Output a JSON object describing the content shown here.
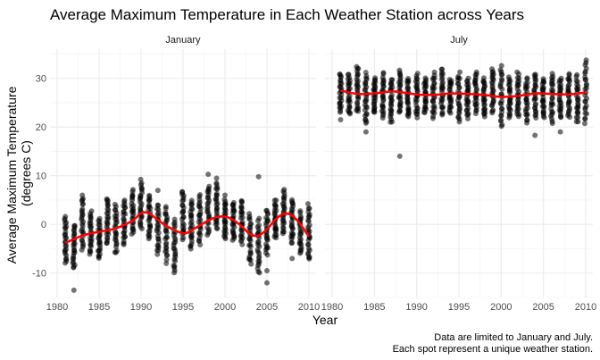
{
  "chart_data": {
    "type": "scatter",
    "title": "Average Maximum Temperature in Each Weather Station across Years",
    "xlabel": "Year",
    "ylabel_lines": [
      "Average Maximum Temperature",
      "(degrees C)"
    ],
    "caption_lines": [
      "Data are limited to January and July.",
      "Each spot represent a unique weather station."
    ],
    "xlim": [
      1980,
      2010
    ],
    "ylim": [
      -15,
      36
    ],
    "x_ticks": [
      1980,
      1985,
      1990,
      1995,
      2000,
      2005,
      2010
    ],
    "y_ticks": [
      -10,
      0,
      10,
      20,
      30
    ],
    "grid": true,
    "point_color": "#000000",
    "trend_color": "#ff0000",
    "panels": [
      {
        "name": "January",
        "ranges": [
          [
            1981,
            -8,
            1.5
          ],
          [
            1982,
            -9,
            0
          ],
          [
            1983,
            -5,
            5.5
          ],
          [
            1984,
            -6,
            2.5
          ],
          [
            1985,
            -7,
            1
          ],
          [
            1986,
            -4,
            5.5
          ],
          [
            1987,
            -6,
            4
          ],
          [
            1988,
            -4,
            5
          ],
          [
            1989,
            -2,
            7
          ],
          [
            1990,
            -1,
            9
          ],
          [
            1991,
            -3,
            6
          ],
          [
            1992,
            -6,
            4
          ],
          [
            1993,
            -7,
            3.5
          ],
          [
            1994,
            -10,
            1
          ],
          [
            1995,
            -3,
            7
          ],
          [
            1996,
            -5,
            5
          ],
          [
            1997,
            -4,
            6
          ],
          [
            1998,
            -2,
            8
          ],
          [
            1999,
            -1,
            8.5
          ],
          [
            2000,
            -3,
            5
          ],
          [
            2001,
            -3,
            4.5
          ],
          [
            2002,
            -4,
            5
          ],
          [
            2003,
            -8,
            2
          ],
          [
            2004,
            -10,
            1
          ],
          [
            2005,
            -6,
            3
          ],
          [
            2006,
            -3,
            5
          ],
          [
            2007,
            -2,
            7
          ],
          [
            2008,
            -4,
            5
          ],
          [
            2009,
            -6,
            2.5
          ],
          [
            2010,
            -7,
            4
          ]
        ],
        "outliers": [
          [
            1982,
            -13.5
          ],
          [
            1993,
            -8
          ],
          [
            1998,
            10.3
          ],
          [
            1999,
            9.5
          ],
          [
            2004,
            9.8
          ],
          [
            2005,
            -12
          ],
          [
            2005,
            -9.5
          ],
          [
            2008,
            -7
          ],
          [
            2010,
            -6.8
          ],
          [
            1983,
            6
          ],
          [
            1992,
            7
          ],
          [
            2000,
            6
          ]
        ],
        "trend": [
          [
            1981,
            -3.8
          ],
          [
            1983,
            -2.3
          ],
          [
            1985,
            -1.5
          ],
          [
            1987,
            -0.8
          ],
          [
            1989,
            0.8
          ],
          [
            1990,
            2.3
          ],
          [
            1991,
            2.2
          ],
          [
            1993,
            -0.3
          ],
          [
            1995,
            -1.8
          ],
          [
            1996,
            -1.2
          ],
          [
            1998,
            0.8
          ],
          [
            1999,
            1.5
          ],
          [
            2000,
            1.6
          ],
          [
            2001,
            0.9
          ],
          [
            2002,
            -0.4
          ],
          [
            2003,
            -2
          ],
          [
            2004,
            -2.3
          ],
          [
            2005,
            -1
          ],
          [
            2006,
            1
          ],
          [
            2007,
            2.2
          ],
          [
            2008,
            1.8
          ],
          [
            2009,
            0
          ],
          [
            2010,
            -2.5
          ]
        ]
      },
      {
        "name": "July",
        "ranges": [
          [
            1981,
            23,
            31
          ],
          [
            1982,
            22.5,
            31
          ],
          [
            1983,
            23,
            32.5
          ],
          [
            1984,
            21,
            31
          ],
          [
            1985,
            23,
            30
          ],
          [
            1986,
            22,
            31
          ],
          [
            1987,
            21,
            30
          ],
          [
            1988,
            23,
            31.5
          ],
          [
            1989,
            22,
            30
          ],
          [
            1990,
            22,
            31
          ],
          [
            1991,
            23,
            30
          ],
          [
            1992,
            22,
            31
          ],
          [
            1993,
            22.5,
            32
          ],
          [
            1994,
            23,
            30
          ],
          [
            1995,
            21,
            31
          ],
          [
            1996,
            22,
            30
          ],
          [
            1997,
            23,
            31
          ],
          [
            1998,
            22,
            30
          ],
          [
            1999,
            23,
            32
          ],
          [
            2000,
            20,
            32.5
          ],
          [
            2001,
            22,
            30
          ],
          [
            2002,
            22,
            31
          ],
          [
            2003,
            21,
            30
          ],
          [
            2004,
            22,
            31
          ],
          [
            2005,
            22,
            30
          ],
          [
            2006,
            21,
            31
          ],
          [
            2007,
            22,
            30
          ],
          [
            2008,
            22,
            31
          ],
          [
            2009,
            21,
            30.5
          ],
          [
            2010,
            21,
            33.5
          ]
        ],
        "outliers": [
          [
            1984,
            19
          ],
          [
            1988,
            14
          ],
          [
            2004,
            18.3
          ],
          [
            2007,
            19
          ],
          [
            1981,
            21.5
          ],
          [
            1984,
            20.8
          ]
        ],
        "trend": [
          [
            1981,
            27.5
          ],
          [
            1983,
            26.8
          ],
          [
            1985,
            26.9
          ],
          [
            1987,
            27.3
          ],
          [
            1988,
            27.2
          ],
          [
            1990,
            26.7
          ],
          [
            1992,
            26.6
          ],
          [
            1994,
            26.9
          ],
          [
            1996,
            26.8
          ],
          [
            1998,
            26.6
          ],
          [
            2000,
            26.2
          ],
          [
            2002,
            26.4
          ],
          [
            2004,
            26.9
          ],
          [
            2006,
            26.8
          ],
          [
            2008,
            26.7
          ],
          [
            2010,
            27.1
          ]
        ]
      }
    ]
  }
}
